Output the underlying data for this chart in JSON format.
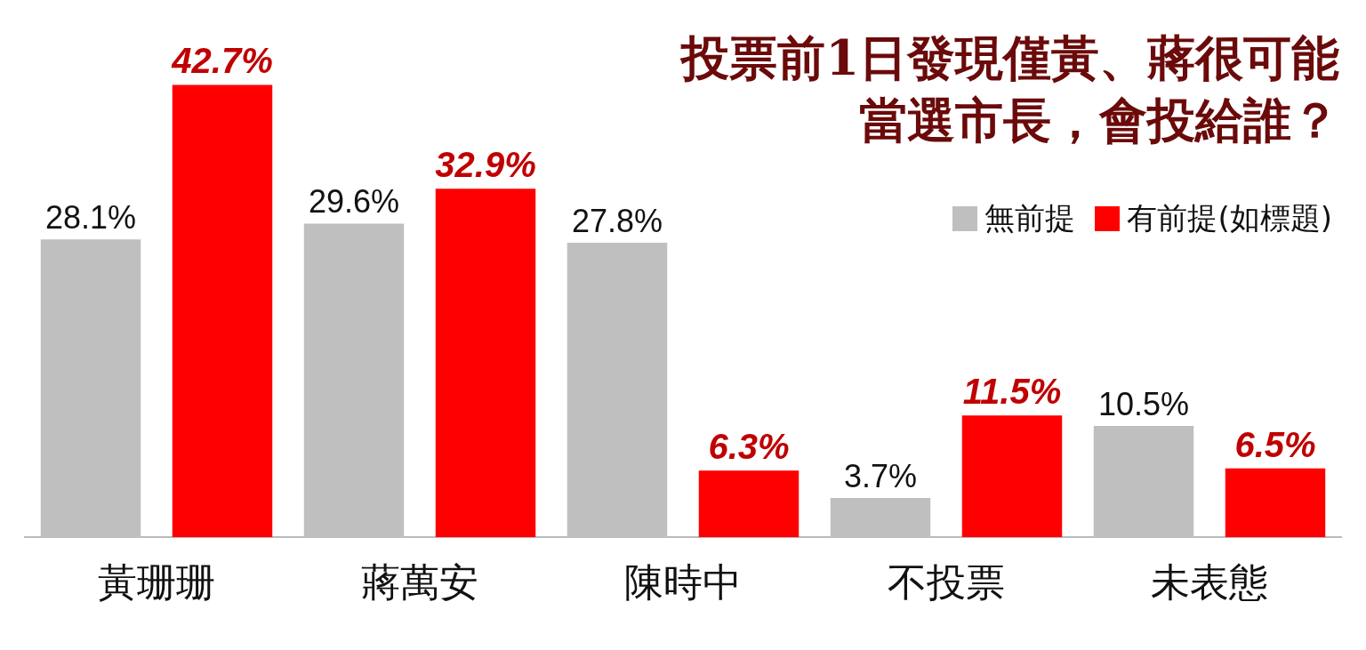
{
  "chart_data": {
    "type": "bar",
    "title": "投票前1日發現僅黃、蔣很可能當選市長，會投給誰？",
    "categories": [
      "黃珊珊",
      "蔣萬安",
      "陳時中",
      "不投票",
      "未表態"
    ],
    "series": [
      {
        "name": "無前提",
        "color": "#bfbfbf",
        "values": [
          28.1,
          29.6,
          27.8,
          3.7,
          10.5
        ],
        "value_labels": [
          "28.1%",
          "29.6%",
          "27.8%",
          "3.7%",
          "10.5%"
        ]
      },
      {
        "name": "有前提(如標題)",
        "color": "#ff0000",
        "values": [
          42.7,
          32.9,
          6.3,
          11.5,
          6.5
        ],
        "value_labels": [
          "42.7%",
          "32.9%",
          "6.3%",
          "11.5%",
          "6.5%"
        ]
      }
    ],
    "tick_labels": "x",
    "grid": false,
    "legend": "top right"
  }
}
